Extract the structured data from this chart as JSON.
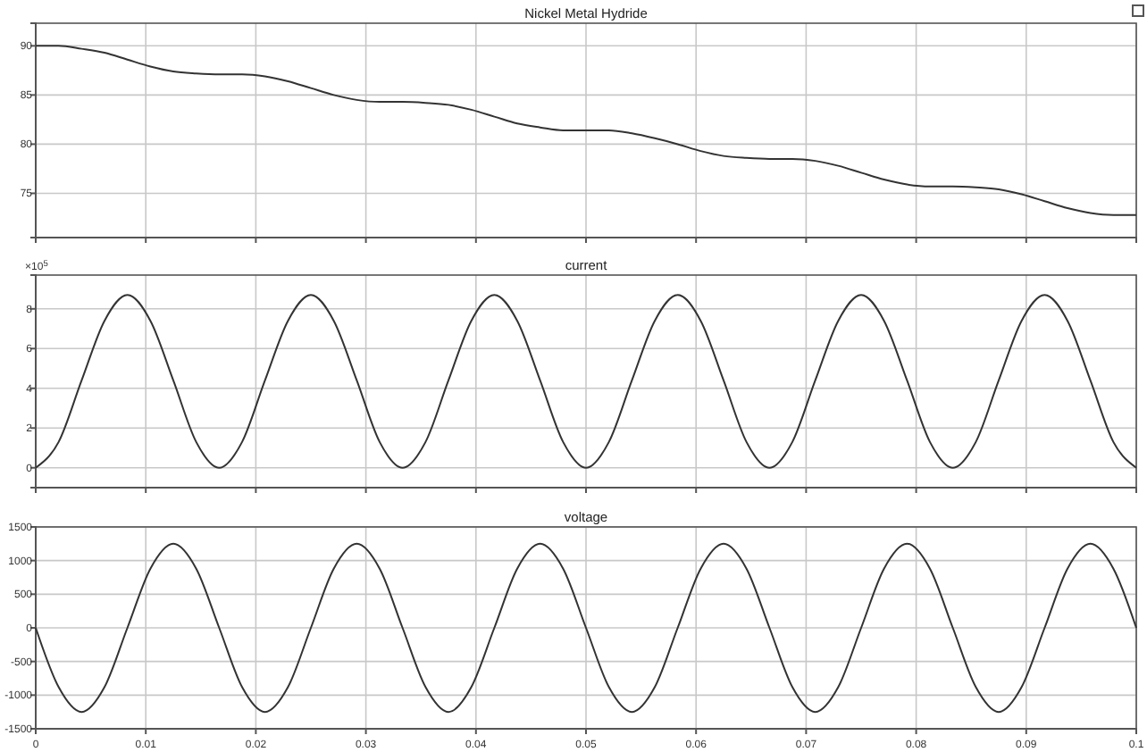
{
  "chart_data": [
    {
      "type": "line",
      "title": "Nickel Metal Hydride",
      "x": [
        0,
        0.00208,
        0.00417,
        0.00625,
        0.00833,
        0.01042,
        0.0125,
        0.01458,
        0.01667,
        0.01875,
        0.02083,
        0.02292,
        0.025,
        0.02708,
        0.02917,
        0.03125,
        0.03333,
        0.03542,
        0.0375,
        0.03958,
        0.04167,
        0.04375,
        0.04583,
        0.04792,
        0.05,
        0.05208,
        0.05417,
        0.05625,
        0.05833,
        0.06042,
        0.0625,
        0.06458,
        0.06667,
        0.06875,
        0.07083,
        0.07292,
        0.075,
        0.07708,
        0.07917,
        0.08125,
        0.08333,
        0.08542,
        0.0875,
        0.08958,
        0.09167,
        0.09375,
        0.09583,
        0.09792,
        0.1
      ],
      "series": [
        {
          "color": "#333333",
          "values": [
            90,
            90.0,
            89.7,
            89.3,
            88.6,
            87.9,
            87.4,
            87.2,
            87.1,
            87.1,
            86.9,
            86.4,
            85.7,
            85.0,
            84.5,
            84.3,
            84.3,
            84.2,
            84.0,
            83.5,
            82.8,
            82.1,
            81.7,
            81.4,
            81.4,
            81.4,
            81.1,
            80.6,
            80.0,
            79.3,
            78.8,
            78.6,
            78.5,
            78.5,
            78.3,
            77.8,
            77.1,
            76.4,
            75.9,
            75.7,
            75.7,
            75.6,
            75.4,
            74.9,
            74.2,
            73.5,
            73.0,
            72.8,
            72.8
          ]
        }
      ],
      "xlim": [
        0,
        0.1
      ],
      "xticks": [
        0,
        0.01,
        0.02,
        0.03,
        0.04,
        0.05,
        0.06,
        0.07,
        0.08,
        0.09,
        0.1
      ],
      "ylim": [
        70.5,
        92.3
      ],
      "yticks": [
        75,
        80,
        85,
        90
      ],
      "grid": true,
      "tick_labels": "y"
    },
    {
      "type": "line",
      "title": "current",
      "annotations": [
        "×10$^{5}$"
      ],
      "x": [
        0,
        0.00208,
        0.00417,
        0.00625,
        0.00833,
        0.01042,
        0.0125,
        0.01458,
        0.01667,
        0.01875,
        0.02083,
        0.02292,
        0.025,
        0.02708,
        0.02917,
        0.03125,
        0.03333,
        0.03542,
        0.0375,
        0.03958,
        0.04167,
        0.04375,
        0.04583,
        0.04792,
        0.05,
        0.05208,
        0.05417,
        0.05625,
        0.05833,
        0.06042,
        0.0625,
        0.06458,
        0.06667,
        0.06875,
        0.07083,
        0.07292,
        0.075,
        0.07708,
        0.07917,
        0.08125,
        0.08333,
        0.08542,
        0.0875,
        0.08958,
        0.09167,
        0.09375,
        0.09583,
        0.09792,
        0.1
      ],
      "series": [
        {
          "color": "#333333",
          "values": [
            0,
            1.3,
            4.4,
            7.4,
            8.7,
            7.4,
            4.4,
            1.3,
            0,
            1.3,
            4.4,
            7.4,
            8.7,
            7.4,
            4.4,
            1.3,
            0,
            1.3,
            4.4,
            7.4,
            8.7,
            7.4,
            4.4,
            1.3,
            0,
            1.3,
            4.4,
            7.4,
            8.7,
            7.4,
            4.4,
            1.3,
            0,
            1.3,
            4.4,
            7.4,
            8.7,
            7.4,
            4.4,
            1.3,
            0,
            1.3,
            4.4,
            7.4,
            8.7,
            7.4,
            4.4,
            1.3,
            0
          ]
        }
      ],
      "xlim": [
        0,
        0.1
      ],
      "xticks": [
        0,
        0.01,
        0.02,
        0.03,
        0.04,
        0.05,
        0.06,
        0.07,
        0.08,
        0.09,
        0.1
      ],
      "ylim": [
        -1,
        9.7
      ],
      "yticks": [
        0,
        2,
        4,
        6,
        8
      ],
      "grid": true,
      "tick_labels": "y"
    },
    {
      "type": "line",
      "title": "voltage",
      "x": [
        0,
        0.00208,
        0.00417,
        0.00625,
        0.00833,
        0.01042,
        0.0125,
        0.01458,
        0.01667,
        0.01875,
        0.02083,
        0.02292,
        0.025,
        0.02708,
        0.02917,
        0.03125,
        0.03333,
        0.03542,
        0.0375,
        0.03958,
        0.04167,
        0.04375,
        0.04583,
        0.04792,
        0.05,
        0.05208,
        0.05417,
        0.05625,
        0.05833,
        0.06042,
        0.0625,
        0.06458,
        0.06667,
        0.06875,
        0.07083,
        0.07292,
        0.075,
        0.07708,
        0.07917,
        0.08125,
        0.08333,
        0.08542,
        0.0875,
        0.08958,
        0.09167,
        0.09375,
        0.09583,
        0.09792,
        0.1
      ],
      "series": [
        {
          "color": "#333333",
          "values": [
            0,
            -880,
            -1250,
            -880,
            0,
            880,
            1250,
            880,
            0,
            -880,
            -1250,
            -880,
            0,
            880,
            1250,
            880,
            0,
            -880,
            -1250,
            -880,
            0,
            880,
            1250,
            880,
            0,
            -880,
            -1250,
            -880,
            0,
            880,
            1250,
            880,
            0,
            -880,
            -1250,
            -880,
            0,
            880,
            1250,
            880,
            0,
            -880,
            -1250,
            -880,
            0,
            880,
            1250,
            880,
            0
          ]
        }
      ],
      "xlim": [
        0,
        0.1
      ],
      "xticks": [
        0,
        0.01,
        0.02,
        0.03,
        0.04,
        0.05,
        0.06,
        0.07,
        0.08,
        0.09,
        0.1
      ],
      "ylim": [
        -1500,
        1500
      ],
      "yticks": [
        -1500,
        -1000,
        -500,
        0,
        500,
        1000,
        1500
      ],
      "grid": true
    }
  ]
}
